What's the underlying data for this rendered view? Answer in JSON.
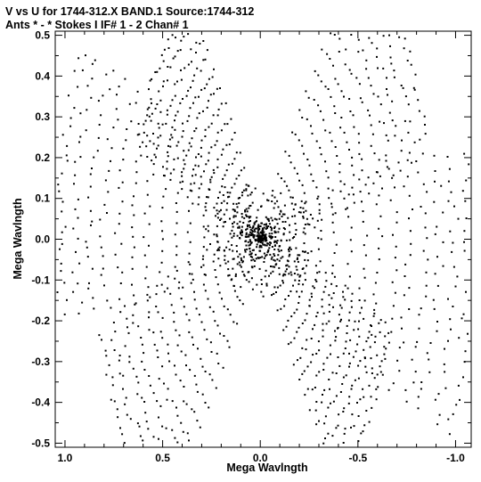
{
  "header": {
    "line1": "V vs U for 1744-312.X BAND.1   Source:1744-312",
    "line2": "Ants * - *    Stokes I  IF# 1 - 2  Chan# 1"
  },
  "chart_data": {
    "type": "scatter",
    "title": "V vs U for 1744-312.X BAND.1   Source:1744-312",
    "subtitle": "Ants * - *    Stokes I  IF# 1 - 2  Chan# 1",
    "xlabel": "Mega Wavlngth",
    "ylabel": "Mega Wavlngth",
    "xlim": [
      1.05,
      -1.08
    ],
    "ylim": [
      -0.51,
      0.51
    ],
    "x_reversed": true,
    "grid": false,
    "x_ticks": [
      1.0,
      0.5,
      0.0,
      -0.5,
      -1.0
    ],
    "x_tick_labels": [
      "1.0",
      "0.5",
      "0.0",
      "-0.5",
      "-1.0"
    ],
    "y_ticks": [
      0.5,
      0.4,
      0.3,
      0.2,
      0.1,
      0.0,
      -0.1,
      -0.2,
      -0.3,
      -0.4,
      -0.5
    ],
    "y_tick_labels": [
      "0.5",
      "0.4",
      "0.3",
      "0.2",
      "0.1",
      "0.0",
      "-0.1",
      "-0.2",
      "-0.3",
      "-0.4",
      "-0.5"
    ],
    "point_color": "#000000",
    "description": "UV coverage: six-armed star (hexagram) pattern of visibility samples, point-symmetric about the origin",
    "arm_extents": [
      {
        "u": -0.73,
        "v": 0.48
      },
      {
        "u": 0.52,
        "v": 0.42
      },
      {
        "u": 1.01,
        "v": 0.15
      },
      {
        "u": 0.7,
        "v": -0.48
      },
      {
        "u": -0.56,
        "v": -0.42
      },
      {
        "u": -1.06,
        "v": -0.14
      }
    ]
  }
}
